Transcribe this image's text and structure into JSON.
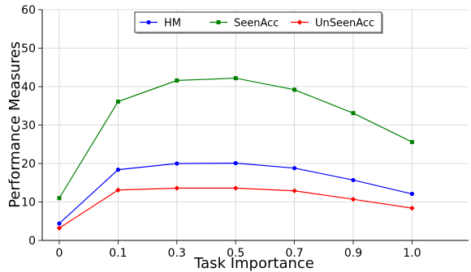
{
  "chart_data": {
    "type": "line",
    "title": "",
    "xlabel": "Task Importance",
    "ylabel": "Performance Measures",
    "categories": [
      "0",
      "0.1",
      "0.3",
      "0.5",
      "0.7",
      "0.9",
      "1.0"
    ],
    "ylim": [
      0,
      60
    ],
    "yticks": [
      "0",
      "10",
      "20",
      "30",
      "40",
      "50",
      "60"
    ],
    "grid": true,
    "legend_position": "top-center",
    "series": [
      {
        "name": "HM",
        "color": "#0000ff",
        "marker": "circle",
        "values": [
          4.4,
          18.4,
          20.0,
          20.1,
          18.8,
          15.7,
          12.1
        ]
      },
      {
        "name": "SeenAcc",
        "color": "#008000",
        "marker": "square",
        "values": [
          11.0,
          36.1,
          41.6,
          42.2,
          39.2,
          33.1,
          25.6
        ]
      },
      {
        "name": "UnSeenAcc",
        "color": "#ff0000",
        "marker": "diamond",
        "values": [
          3.2,
          13.1,
          13.6,
          13.6,
          12.9,
          10.7,
          8.4
        ]
      }
    ]
  }
}
